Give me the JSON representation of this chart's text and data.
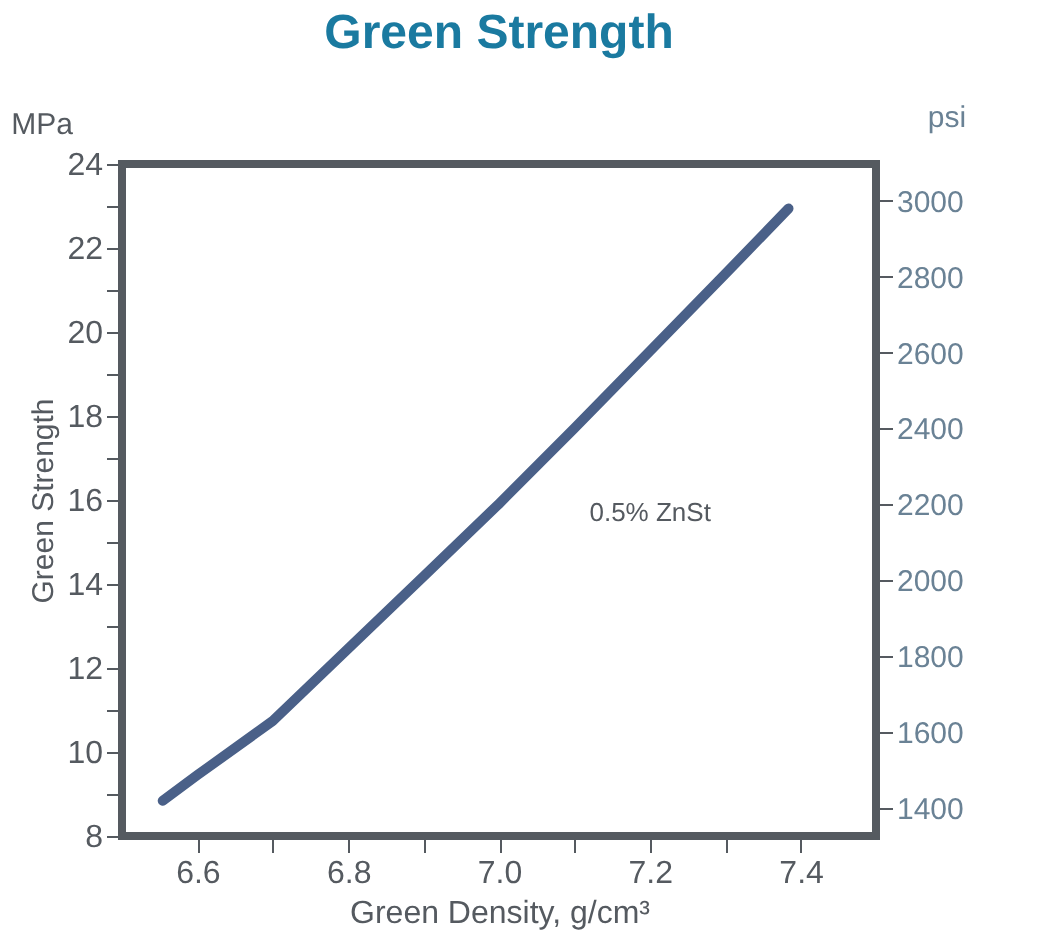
{
  "chart_data": {
    "type": "line",
    "title": "Green Strength",
    "xlabel": "Green Density, g/cm³",
    "ylabel": "Green Strength",
    "y2label": "psi",
    "annotations": [
      "MPa",
      "0.5% ZnSt"
    ],
    "x": [
      6.554,
      6.6,
      6.7,
      6.8,
      6.9,
      7.0,
      7.1,
      7.2,
      7.3,
      7.384
    ],
    "series": [
      {
        "color": "#4a6088",
        "values": [
          8.84,
          9.45,
          10.74,
          12.46,
          14.18,
          15.91,
          17.71,
          19.54,
          21.38,
          22.94
        ]
      }
    ],
    "xlim": [
      6.5,
      7.5
    ],
    "ylim": [
      8,
      24
    ],
    "y2lim": [
      1326,
      3097
    ],
    "xticks": [
      6.6,
      {
        "value": 6.7,
        "label": null
      },
      6.8,
      {
        "value": 6.9,
        "label": null
      },
      {
        "value": 7.0,
        "label": "7.0"
      },
      {
        "value": 7.1,
        "label": null
      },
      7.2,
      {
        "value": 7.3,
        "label": null
      },
      7.4
    ],
    "yticks": [
      8,
      {
        "value": 9,
        "label": null
      },
      10,
      {
        "value": 11,
        "label": null
      },
      12,
      {
        "value": 13,
        "label": null
      },
      14,
      {
        "value": 15,
        "label": null
      },
      16,
      {
        "value": 17,
        "label": null
      },
      18,
      {
        "value": 19,
        "label": null
      },
      20,
      {
        "value": 21,
        "label": null
      },
      22,
      {
        "value": 23,
        "label": null
      },
      24
    ],
    "y2ticks": [
      1400,
      1600,
      1800,
      2000,
      2200,
      2400,
      2600,
      2800,
      3000
    ],
    "grid": false,
    "legend": false,
    "marker": "none",
    "line_style": "solid"
  }
}
